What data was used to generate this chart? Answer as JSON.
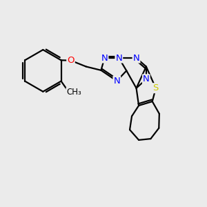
{
  "bg_color": "#ebebeb",
  "atom_colors": {
    "N": "#0000ff",
    "O": "#ff0000",
    "S": "#cccc00"
  },
  "bond_color": "#000000",
  "bond_width": 1.6,
  "font_size": 9.5
}
